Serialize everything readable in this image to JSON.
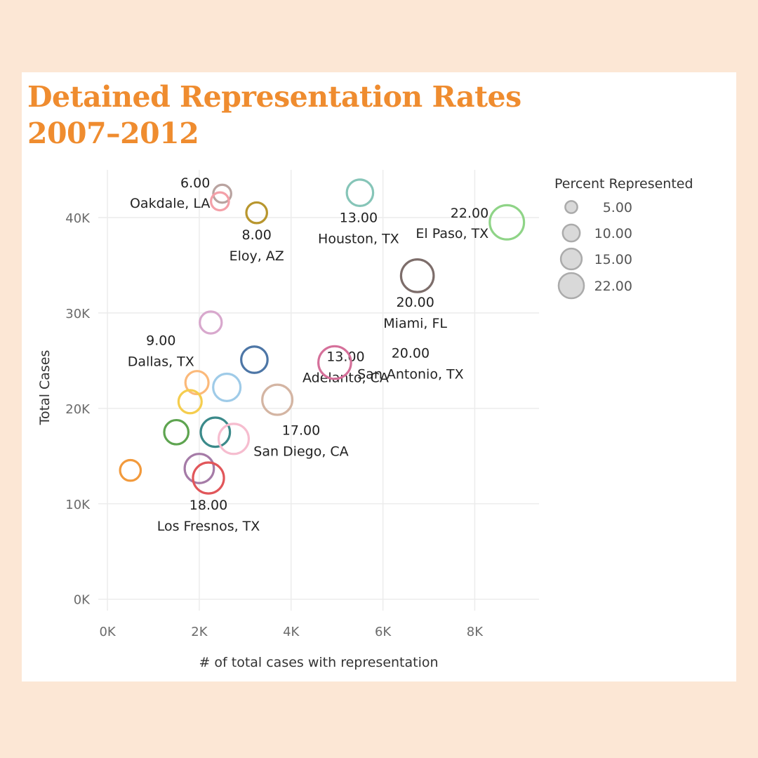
{
  "title_line1": "Detained Representation Rates",
  "title_line2": "2007–2012",
  "chart_data": {
    "type": "scatter",
    "xlabel": "# of total cases with representation",
    "ylabel": "Total Cases",
    "xlim": [
      -200,
      9400
    ],
    "ylim": [
      -1200,
      45000
    ],
    "x_ticks": [
      0,
      2000,
      4000,
      6000,
      8000
    ],
    "x_tick_labels": [
      "0K",
      "2K",
      "4K",
      "6K",
      "8K"
    ],
    "y_ticks": [
      0,
      10000,
      20000,
      30000,
      40000
    ],
    "y_tick_labels": [
      "0K",
      "10K",
      "20K",
      "30K",
      "40K"
    ],
    "grid": true,
    "size_encoding": "Percent Represented",
    "points": [
      {
        "x": 2500,
        "y": 42500,
        "size": 6,
        "color": "#b9a3a0"
      },
      {
        "x": 2450,
        "y": 41700,
        "size": 6,
        "color": "#f4a0a8",
        "value_label": "6.00",
        "name_label": "Oakdale, LA"
      },
      {
        "x": 3250,
        "y": 40500,
        "size": 8,
        "color": "#b8962e",
        "value_label": "8.00",
        "name_label": "Eloy, AZ"
      },
      {
        "x": 5500,
        "y": 42600,
        "size": 13,
        "color": "#86c5b8",
        "value_label": "13.00",
        "name_label": "Houston, TX"
      },
      {
        "x": 8700,
        "y": 39500,
        "size": 22,
        "color": "#8fd487",
        "value_label": "22.00",
        "name_label": "El Paso, TX"
      },
      {
        "x": 6750,
        "y": 33900,
        "size": 20,
        "color": "#7d6d6a",
        "value_label": "20.00",
        "name_label": "Miami, FL"
      },
      {
        "x": 2250,
        "y": 29000,
        "size": 9,
        "color": "#d8a8cd",
        "value_label": "9.00",
        "name_label": "Dallas, TX"
      },
      {
        "x": 3200,
        "y": 25100,
        "size": 13,
        "color": "#4d76a6",
        "value_label": "13.00",
        "name_label": "Adelanto, CA"
      },
      {
        "x": 4950,
        "y": 24800,
        "size": 20,
        "color": "#d5709a",
        "value_label": "20.00",
        "name_label": "San Antonio, TX"
      },
      {
        "x": 1950,
        "y": 22700,
        "size": 10,
        "color": "#fbb97a"
      },
      {
        "x": 2600,
        "y": 22200,
        "size": 14,
        "color": "#9fcbe8"
      },
      {
        "x": 1800,
        "y": 20700,
        "size": 10,
        "color": "#f5cd4e"
      },
      {
        "x": 3700,
        "y": 20900,
        "size": 17,
        "color": "#d4b5a3"
      },
      {
        "x": 1500,
        "y": 17500,
        "size": 11,
        "color": "#5ea450"
      },
      {
        "x": 2350,
        "y": 17500,
        "size": 16,
        "color": "#3b8a8a"
      },
      {
        "x": 2750,
        "y": 16800,
        "size": 17,
        "color": "#f6bdcf",
        "value_label": "17.00",
        "name_label": "San Diego, CA"
      },
      {
        "x": 500,
        "y": 13500,
        "size": 8,
        "color": "#f29a3c"
      },
      {
        "x": 2000,
        "y": 13700,
        "size": 16,
        "color": "#a57ba7"
      },
      {
        "x": 2200,
        "y": 12700,
        "size": 18,
        "color": "#e1565a",
        "value_label": "18.00",
        "name_label": "Los Fresnos, TX"
      }
    ],
    "legend": {
      "title": "Percent Represented",
      "placement": "top-right",
      "items": [
        {
          "label": "5.00",
          "size": 5
        },
        {
          "label": "10.00",
          "size": 10
        },
        {
          "label": "15.00",
          "size": 15
        },
        {
          "label": "22.00",
          "size": 22
        }
      ]
    }
  }
}
